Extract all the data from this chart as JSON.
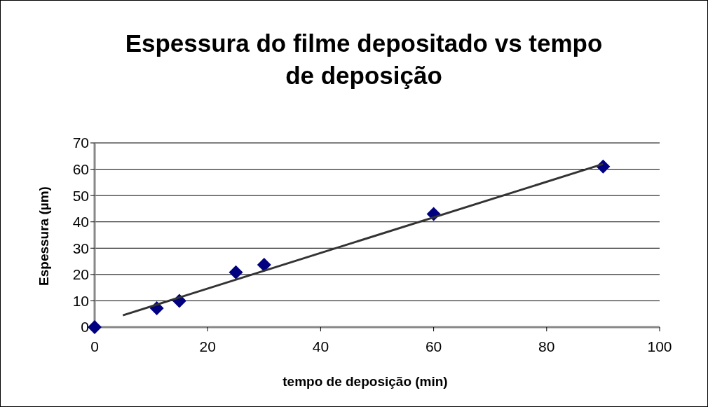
{
  "chart_data": {
    "type": "scatter",
    "title": "Espessura do filme depositado vs  tempo de deposição",
    "xlabel": "tempo de deposição (min)",
    "ylabel": "Espessura (µm)",
    "series": [
      {
        "color": "#000080",
        "marker": "diamond",
        "x": [
          0,
          11,
          15,
          25,
          30,
          60,
          90
        ],
        "values": [
          0,
          7.2,
          10,
          20.8,
          23.7,
          43,
          61
        ]
      },
      {
        "type": "line",
        "color": "#333333",
        "marker": "none",
        "line_style": "solid",
        "x": [
          5,
          90
        ],
        "values": [
          4.5,
          62
        ]
      }
    ],
    "xlim": [
      0,
      100
    ],
    "xticks": [
      0,
      20,
      40,
      60,
      80,
      100
    ],
    "ylim": [
      0,
      70
    ],
    "yticks": [
      0,
      10,
      20,
      30,
      40,
      50,
      60,
      70
    ],
    "grid": "y",
    "legend": false
  }
}
